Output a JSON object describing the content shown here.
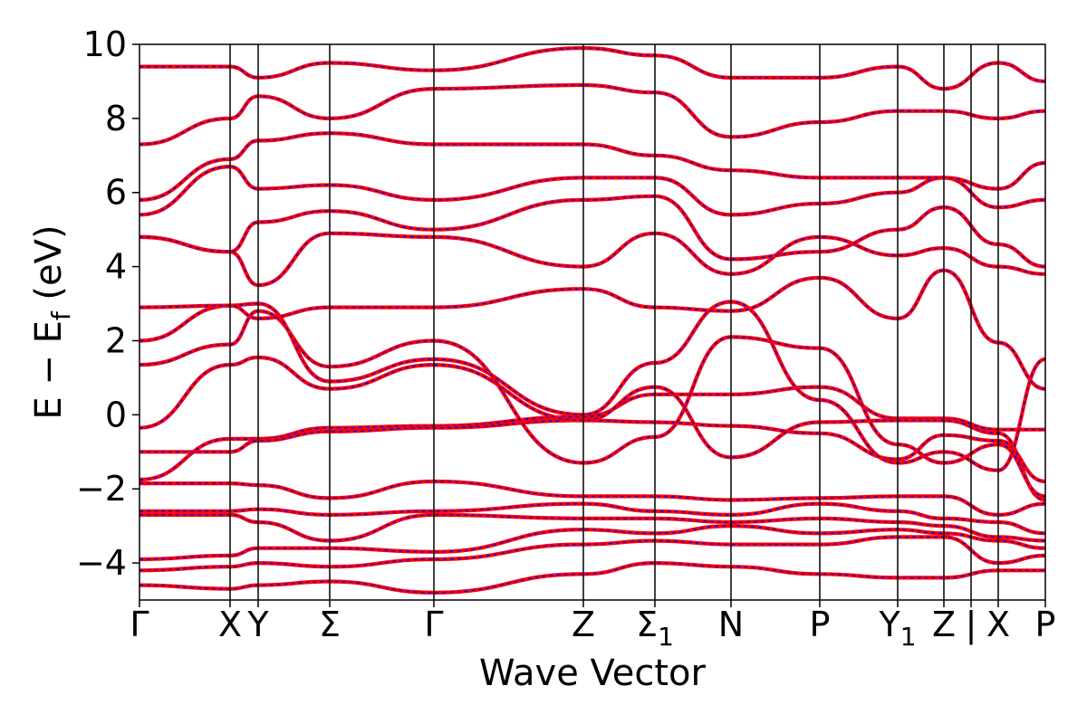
{
  "chart_data": {
    "type": "line",
    "title": "",
    "xlabel": "Wave Vector",
    "ylabel": "E − E_f (eV)",
    "ylabel_parts": {
      "pre": "E  −  E",
      "sub": "f",
      "post": " (eV)"
    },
    "ylim": [
      -5,
      10
    ],
    "yticks": [
      {
        "value": -4,
        "label": "−4"
      },
      {
        "value": -2,
        "label": "−2"
      },
      {
        "value": 0,
        "label": "0"
      },
      {
        "value": 2,
        "label": "2"
      },
      {
        "value": 4,
        "label": "4"
      },
      {
        "value": 6,
        "label": "6"
      },
      {
        "value": 8,
        "label": "8"
      },
      {
        "value": 10,
        "label": "10"
      }
    ],
    "xlim": [
      0,
      1
    ],
    "kpoints": [
      {
        "pos": 0.0,
        "label": "Γ",
        "sub": ""
      },
      {
        "pos": 0.1,
        "label": "X",
        "sub": ""
      },
      {
        "pos": 0.131,
        "label": "Y",
        "sub": ""
      },
      {
        "pos": 0.21,
        "label": "Σ",
        "sub": ""
      },
      {
        "pos": 0.325,
        "label": "Γ",
        "sub": ""
      },
      {
        "pos": 0.49,
        "label": "Z",
        "sub": ""
      },
      {
        "pos": 0.569,
        "label": "Σ",
        "sub": "1"
      },
      {
        "pos": 0.653,
        "label": "N",
        "sub": ""
      },
      {
        "pos": 0.751,
        "label": "P",
        "sub": ""
      },
      {
        "pos": 0.837,
        "label": "Y",
        "sub": "1"
      },
      {
        "pos": 0.888,
        "label": "Z",
        "sub": ""
      },
      {
        "pos": 0.948,
        "label": "X",
        "sub": ""
      },
      {
        "pos": 1.0,
        "label": "P",
        "sub": ""
      }
    ],
    "path_break": {
      "pos": 0.918,
      "label": "|"
    },
    "band_colors": {
      "solid": "#ff0000",
      "dashed": "#0000ff"
    },
    "series": [
      {
        "y": [
          -1.75,
          -0.65,
          -0.65,
          -0.35,
          -0.3,
          -0.05,
          0.55,
          0.55,
          0.75,
          -0.1,
          -0.1,
          -0.4,
          -0.4
        ]
      },
      {
        "y": [
          -1.0,
          -1.0,
          -0.7,
          -0.45,
          -0.35,
          -0.15,
          -0.2,
          -0.3,
          -0.5,
          -1.2,
          -0.55,
          -0.7,
          -1.8
        ]
      },
      {
        "y": [
          -0.35,
          1.35,
          1.55,
          0.7,
          1.35,
          -0.15,
          0.75,
          -1.15,
          -0.2,
          -0.15,
          -0.15,
          -0.5,
          -2.3
        ]
      },
      {
        "y": [
          1.35,
          1.9,
          2.8,
          1.3,
          2.0,
          -1.3,
          -0.6,
          2.1,
          1.8,
          -0.8,
          -1.3,
          -0.8,
          -2.2
        ]
      },
      {
        "y": [
          2.0,
          2.95,
          3.0,
          0.9,
          1.5,
          0.0,
          1.4,
          3.05,
          0.4,
          -1.3,
          -1.0,
          -1.5,
          1.5
        ]
      },
      {
        "y": [
          2.9,
          2.95,
          2.6,
          2.9,
          2.9,
          3.4,
          2.9,
          2.8,
          3.7,
          2.6,
          3.9,
          1.95,
          0.7
        ]
      },
      {
        "y": [
          4.8,
          4.4,
          3.5,
          4.9,
          4.8,
          4.0,
          4.9,
          3.8,
          4.8,
          4.3,
          4.5,
          4.0,
          3.8
        ]
      },
      {
        "y": [
          4.8,
          4.4,
          5.2,
          5.5,
          5.0,
          5.8,
          5.9,
          4.2,
          4.4,
          5.0,
          5.6,
          4.6,
          4.0
        ]
      },
      {
        "y": [
          5.4,
          6.7,
          6.1,
          6.2,
          5.8,
          6.4,
          6.4,
          5.4,
          5.7,
          6.0,
          6.4,
          5.6,
          5.8
        ]
      },
      {
        "y": [
          5.8,
          6.9,
          7.4,
          7.6,
          7.3,
          7.3,
          7.0,
          6.6,
          6.4,
          6.4,
          6.4,
          6.1,
          6.8
        ]
      },
      {
        "y": [
          7.3,
          8.0,
          8.6,
          8.0,
          8.8,
          8.9,
          8.7,
          7.5,
          7.9,
          8.2,
          8.2,
          8.0,
          8.2
        ]
      },
      {
        "y": [
          9.4,
          9.4,
          9.1,
          9.5,
          9.3,
          9.9,
          9.7,
          9.1,
          9.1,
          9.4,
          8.8,
          9.5,
          9.0
        ]
      },
      {
        "y": [
          -1.85,
          -1.85,
          -1.9,
          -2.25,
          -1.8,
          -2.2,
          -2.2,
          -2.3,
          -2.25,
          -2.2,
          -2.2,
          -2.7,
          -2.4
        ]
      },
      {
        "y": [
          -2.6,
          -2.6,
          -2.55,
          -2.7,
          -2.6,
          -2.4,
          -2.6,
          -2.7,
          -2.4,
          -2.6,
          -2.8,
          -2.9,
          -3.2
        ]
      },
      {
        "y": [
          -2.7,
          -2.7,
          -2.9,
          -3.4,
          -2.7,
          -2.8,
          -2.8,
          -2.9,
          -2.8,
          -2.9,
          -3.0,
          -3.3,
          -3.4
        ]
      },
      {
        "y": [
          -3.9,
          -3.8,
          -3.6,
          -3.6,
          -3.7,
          -3.1,
          -3.2,
          -3.0,
          -3.2,
          -3.1,
          -3.2,
          -3.4,
          -3.6
        ]
      },
      {
        "y": [
          -4.2,
          -4.1,
          -4.0,
          -4.1,
          -3.9,
          -3.5,
          -3.4,
          -3.5,
          -3.5,
          -3.3,
          -3.3,
          -4.0,
          -3.8
        ]
      },
      {
        "y": [
          -4.6,
          -4.7,
          -4.6,
          -4.5,
          -4.8,
          -4.3,
          -4.0,
          -4.1,
          -4.3,
          -4.4,
          -4.4,
          -4.2,
          -4.2
        ]
      }
    ]
  }
}
